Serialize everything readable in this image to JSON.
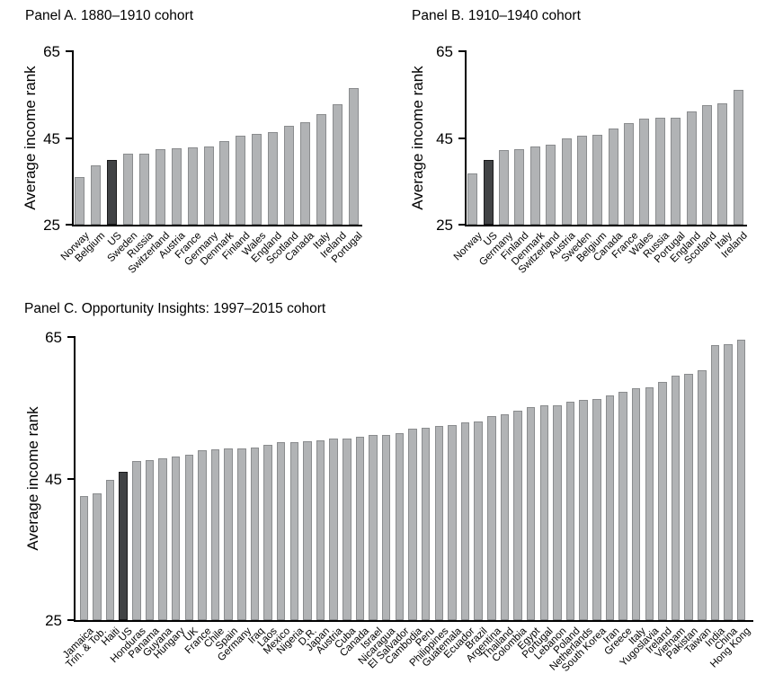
{
  "style": {
    "bar_fill": "#b1b3b5",
    "bar_border": "#8a8c8e",
    "us_fill": "#414345",
    "us_border": "#1a1a1c",
    "axis_color": "#000000",
    "text_color": "#000000",
    "background": "#ffffff"
  },
  "chart_data": [
    {
      "panel": "A",
      "type": "bar",
      "title": "Panel A. 1880–1910 cohort",
      "ylabel": "Average income rank",
      "ylim": [
        25,
        65
      ],
      "yticks": [
        25,
        45,
        65
      ],
      "grid": false,
      "highlight": "US",
      "categories": [
        "Norway",
        "Belgium",
        "US",
        "Sweden",
        "Russia",
        "Switzerland",
        "Austria",
        "France",
        "Germany",
        "Denmark",
        "Finland",
        "Wales",
        "England",
        "Scotland",
        "Canada",
        "Italy",
        "Ireland",
        "Portugal"
      ],
      "values": [
        36.0,
        38.7,
        39.9,
        41.3,
        41.4,
        42.4,
        42.6,
        42.8,
        43.0,
        44.2,
        45.6,
        46.0,
        46.3,
        47.8,
        48.6,
        50.4,
        52.8,
        56.4
      ]
    },
    {
      "panel": "B",
      "type": "bar",
      "title": "Panel B. 1910–1940 cohort",
      "ylabel": "Average income rank",
      "ylim": [
        25,
        65
      ],
      "yticks": [
        25,
        45,
        65
      ],
      "grid": false,
      "highlight": "US",
      "categories": [
        "Norway",
        "US",
        "Germany",
        "Finland",
        "Denmark",
        "Switzerland",
        "Austria",
        "Sweden",
        "Belgium",
        "Canada",
        "France",
        "Wales",
        "Russia",
        "Portugal",
        "England",
        "Scotland",
        "Italy",
        "Ireland"
      ],
      "values": [
        36.9,
        40.0,
        42.3,
        42.5,
        43.0,
        43.5,
        45.0,
        45.6,
        45.8,
        47.1,
        48.4,
        49.5,
        49.6,
        49.7,
        51.2,
        52.5,
        53.0,
        56.1
      ]
    },
    {
      "panel": "C",
      "type": "bar",
      "title": "Panel C. Opportunity Insights: 1997–2015 cohort",
      "ylabel": "Average income rank",
      "ylim": [
        25,
        65
      ],
      "yticks": [
        25,
        45,
        65
      ],
      "grid": false,
      "highlight": "US",
      "categories": [
        "Jamaica",
        "Trin. & Tob.",
        "Haiti",
        "US",
        "Honduras",
        "Panama",
        "Guyana",
        "Hungary",
        "UK",
        "France",
        "Chile",
        "Spain",
        "Germany",
        "Iraq",
        "Laos",
        "Mexico",
        "Nigeria",
        "D.R.",
        "Japan",
        "Austria",
        "Cuba",
        "Canada",
        "Israel",
        "Nicaragua",
        "El Salvador",
        "Cambodia",
        "Peru",
        "Philippines",
        "Guatemala",
        "Ecuador",
        "Brazil",
        "Argentina",
        "Thailand",
        "Colombia",
        "Egypt",
        "Portugal",
        "Lebanon",
        "Poland",
        "Netherlands",
        "South Korea",
        "Iran",
        "Greece",
        "Italy",
        "Yugoslavia",
        "Ireland",
        "Vietnam",
        "Pakistan",
        "Taiwan",
        "India",
        "China",
        "Hong Kong"
      ],
      "values": [
        42.5,
        42.9,
        44.8,
        45.9,
        47.5,
        47.6,
        47.8,
        48.1,
        48.4,
        49.0,
        49.1,
        49.2,
        49.3,
        49.4,
        49.8,
        50.1,
        50.2,
        50.3,
        50.4,
        50.6,
        50.7,
        50.9,
        51.1,
        51.2,
        51.4,
        52.0,
        52.2,
        52.4,
        52.6,
        53.0,
        53.1,
        53.8,
        54.1,
        54.6,
        55.1,
        55.3,
        55.4,
        55.8,
        56.1,
        56.3,
        56.7,
        57.2,
        57.8,
        57.9,
        58.6,
        59.5,
        59.8,
        60.3,
        63.8,
        64.0,
        64.6
      ]
    }
  ]
}
